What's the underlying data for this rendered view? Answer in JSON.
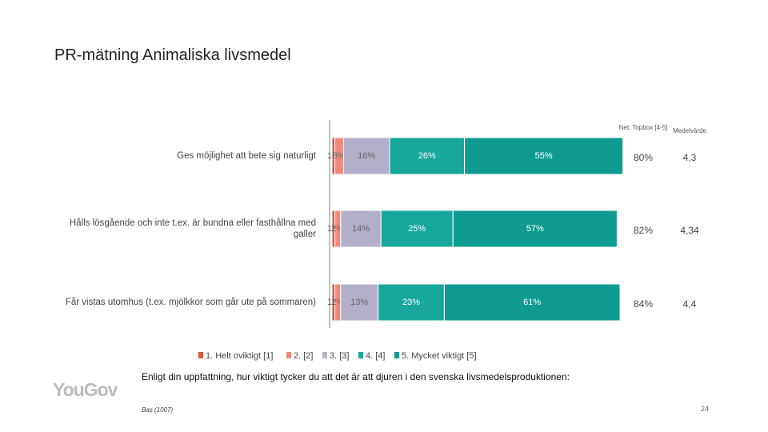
{
  "title": "PR-mätning Animaliska livsmedel",
  "chart_data": {
    "type": "stacked-barh",
    "categories": [
      "Ges möjlighet att bete sig naturligt",
      "Hålls lösgående och inte t.ex. är bundna eller fasthållna med galler",
      "Får vistas utomhus (t.ex. mjölkkor som går ute på sommaren)"
    ],
    "xlim": [
      0,
      100
    ],
    "series": [
      {
        "name": "1. Helt oviktigt [1]",
        "color": "#e4503f",
        "values": [
          1,
          1,
          1
        ],
        "value_labels": [
          "1%",
          "1%",
          "1%"
        ]
      },
      {
        "name": "2. [2]",
        "color": "#f1897a",
        "values": [
          3,
          2,
          2
        ],
        "value_labels": [
          "3%",
          "2%",
          "2%"
        ]
      },
      {
        "name": "3. [3]",
        "color": "#b4afc9",
        "values": [
          16,
          14,
          13
        ],
        "value_labels": [
          "16%",
          "14%",
          "13%"
        ]
      },
      {
        "name": "4. [4]",
        "color": "#18a79c",
        "values": [
          26,
          25,
          23
        ],
        "value_labels": [
          "26%",
          "25%",
          "23%"
        ]
      },
      {
        "name": "5. Mycket viktigt [5]",
        "color": "#0f9b92",
        "values": [
          55,
          57,
          61
        ],
        "value_labels": [
          "55%",
          "57%",
          "61%"
        ]
      }
    ],
    "topbox_header": "Net: Topbox [4-5]",
    "topbox": [
      "80%",
      "82%",
      "84%"
    ],
    "mean_header": "Medelvärde",
    "mean": [
      "4,3",
      "4,34",
      "4,4"
    ],
    "question": "Enligt din uppfattning, hur viktigt tycker du att det är att djuren i den svenska livsmedelsproduktionen:"
  },
  "footer": {
    "base": "Bas (1007)",
    "page": "24",
    "logo": "YouGov"
  }
}
